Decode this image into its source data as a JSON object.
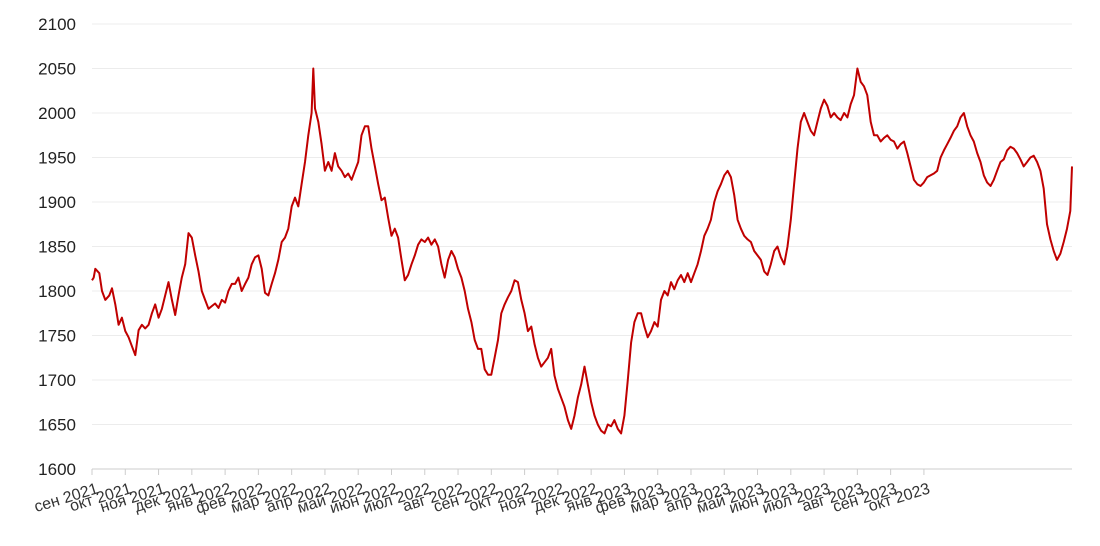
{
  "chart_data": {
    "type": "line",
    "title": "",
    "xlabel": "",
    "ylabel": "",
    "ylim": [
      1600,
      2100
    ],
    "yticks": [
      1600,
      1650,
      1700,
      1750,
      1800,
      1850,
      1900,
      1950,
      2000,
      2050,
      2100
    ],
    "x_tick_labels": [
      "сен 2021",
      "окт 2021",
      "ноя 2021",
      "дек 2021",
      "янв 2022",
      "фев 2022",
      "мар 2022",
      "апр 2022",
      "май 2022",
      "июн 2022",
      "июл 2022",
      "авг 2022",
      "сен 2022",
      "окт 2022",
      "ноя 2022",
      "дек 2022",
      "янв 2023",
      "фев 2023",
      "мар 2023",
      "апр 2023",
      "май 2023",
      "июн 2023",
      "июл 2023",
      "авг 2023",
      "сен 2023",
      "окт 2023"
    ],
    "grid": true,
    "legend": "none",
    "series": [
      {
        "color": "#c00000",
        "points": [
          [
            0.0,
            1812
          ],
          [
            0.05,
            1815
          ],
          [
            0.1,
            1825
          ],
          [
            0.22,
            1820
          ],
          [
            0.3,
            1800
          ],
          [
            0.4,
            1790
          ],
          [
            0.52,
            1795
          ],
          [
            0.6,
            1803
          ],
          [
            0.7,
            1785
          ],
          [
            0.8,
            1762
          ],
          [
            0.9,
            1770
          ],
          [
            1.0,
            1755
          ],
          [
            1.1,
            1748
          ],
          [
            1.2,
            1738
          ],
          [
            1.3,
            1728
          ],
          [
            1.4,
            1756
          ],
          [
            1.5,
            1762
          ],
          [
            1.6,
            1758
          ],
          [
            1.7,
            1762
          ],
          [
            1.8,
            1775
          ],
          [
            1.9,
            1785
          ],
          [
            2.0,
            1770
          ],
          [
            2.1,
            1780
          ],
          [
            2.2,
            1795
          ],
          [
            2.3,
            1810
          ],
          [
            2.4,
            1790
          ],
          [
            2.5,
            1773
          ],
          [
            2.6,
            1795
          ],
          [
            2.7,
            1815
          ],
          [
            2.8,
            1830
          ],
          [
            2.9,
            1865
          ],
          [
            3.0,
            1860
          ],
          [
            3.1,
            1840
          ],
          [
            3.2,
            1822
          ],
          [
            3.3,
            1800
          ],
          [
            3.4,
            1790
          ],
          [
            3.5,
            1780
          ],
          [
            3.6,
            1783
          ],
          [
            3.7,
            1786
          ],
          [
            3.8,
            1781
          ],
          [
            3.9,
            1790
          ],
          [
            4.0,
            1787
          ],
          [
            4.1,
            1800
          ],
          [
            4.2,
            1808
          ],
          [
            4.3,
            1808
          ],
          [
            4.4,
            1815
          ],
          [
            4.5,
            1800
          ],
          [
            4.6,
            1808
          ],
          [
            4.7,
            1815
          ],
          [
            4.8,
            1830
          ],
          [
            4.9,
            1838
          ],
          [
            5.0,
            1840
          ],
          [
            5.1,
            1825
          ],
          [
            5.2,
            1798
          ],
          [
            5.3,
            1795
          ],
          [
            5.4,
            1808
          ],
          [
            5.5,
            1820
          ],
          [
            5.6,
            1835
          ],
          [
            5.7,
            1855
          ],
          [
            5.8,
            1860
          ],
          [
            5.9,
            1870
          ],
          [
            6.0,
            1895
          ],
          [
            6.1,
            1905
          ],
          [
            6.2,
            1895
          ],
          [
            6.3,
            1920
          ],
          [
            6.4,
            1945
          ],
          [
            6.5,
            1975
          ],
          [
            6.6,
            2000
          ],
          [
            6.65,
            2050
          ],
          [
            6.7,
            2005
          ],
          [
            6.8,
            1990
          ],
          [
            6.9,
            1965
          ],
          [
            7.0,
            1935
          ],
          [
            7.1,
            1945
          ],
          [
            7.2,
            1935
          ],
          [
            7.3,
            1955
          ],
          [
            7.4,
            1940
          ],
          [
            7.5,
            1935
          ],
          [
            7.6,
            1928
          ],
          [
            7.7,
            1932
          ],
          [
            7.8,
            1925
          ],
          [
            7.9,
            1935
          ],
          [
            8.0,
            1945
          ],
          [
            8.1,
            1975
          ],
          [
            8.2,
            1985
          ],
          [
            8.3,
            1985
          ],
          [
            8.4,
            1960
          ],
          [
            8.5,
            1940
          ],
          [
            8.6,
            1920
          ],
          [
            8.7,
            1902
          ],
          [
            8.8,
            1905
          ],
          [
            8.9,
            1882
          ],
          [
            9.0,
            1862
          ],
          [
            9.1,
            1870
          ],
          [
            9.2,
            1860
          ],
          [
            9.3,
            1835
          ],
          [
            9.4,
            1812
          ],
          [
            9.5,
            1818
          ],
          [
            9.6,
            1830
          ],
          [
            9.7,
            1840
          ],
          [
            9.8,
            1852
          ],
          [
            9.9,
            1858
          ],
          [
            10.0,
            1855
          ],
          [
            10.1,
            1860
          ],
          [
            10.2,
            1852
          ],
          [
            10.3,
            1858
          ],
          [
            10.4,
            1850
          ],
          [
            10.5,
            1830
          ],
          [
            10.6,
            1815
          ],
          [
            10.7,
            1835
          ],
          [
            10.8,
            1845
          ],
          [
            10.9,
            1838
          ],
          [
            11.0,
            1825
          ],
          [
            11.1,
            1815
          ],
          [
            11.2,
            1800
          ],
          [
            11.3,
            1780
          ],
          [
            11.4,
            1765
          ],
          [
            11.5,
            1745
          ],
          [
            11.6,
            1735
          ],
          [
            11.7,
            1735
          ],
          [
            11.8,
            1712
          ],
          [
            11.9,
            1706
          ],
          [
            12.0,
            1706
          ],
          [
            12.1,
            1725
          ],
          [
            12.2,
            1745
          ],
          [
            12.3,
            1775
          ],
          [
            12.4,
            1785
          ],
          [
            12.5,
            1793
          ],
          [
            12.6,
            1800
          ],
          [
            12.7,
            1812
          ],
          [
            12.8,
            1810
          ],
          [
            12.9,
            1790
          ],
          [
            13.0,
            1775
          ],
          [
            13.1,
            1755
          ],
          [
            13.2,
            1760
          ],
          [
            13.3,
            1740
          ],
          [
            13.4,
            1725
          ],
          [
            13.5,
            1715
          ],
          [
            13.6,
            1720
          ],
          [
            13.7,
            1725
          ],
          [
            13.8,
            1735
          ],
          [
            13.9,
            1705
          ],
          [
            14.0,
            1690
          ],
          [
            14.1,
            1680
          ],
          [
            14.2,
            1670
          ],
          [
            14.3,
            1655
          ],
          [
            14.4,
            1645
          ],
          [
            14.5,
            1660
          ],
          [
            14.6,
            1680
          ],
          [
            14.7,
            1695
          ],
          [
            14.8,
            1715
          ],
          [
            14.9,
            1695
          ],
          [
            15.0,
            1675
          ],
          [
            15.1,
            1660
          ],
          [
            15.2,
            1650
          ],
          [
            15.3,
            1643
          ],
          [
            15.4,
            1640
          ],
          [
            15.5,
            1650
          ],
          [
            15.6,
            1648
          ],
          [
            15.7,
            1655
          ],
          [
            15.8,
            1645
          ],
          [
            15.9,
            1640
          ],
          [
            16.0,
            1660
          ],
          [
            16.1,
            1700
          ],
          [
            16.2,
            1742
          ],
          [
            16.3,
            1765
          ],
          [
            16.4,
            1775
          ],
          [
            16.5,
            1775
          ],
          [
            16.6,
            1760
          ],
          [
            16.7,
            1748
          ],
          [
            16.8,
            1755
          ],
          [
            16.9,
            1765
          ],
          [
            17.0,
            1760
          ],
          [
            17.1,
            1790
          ],
          [
            17.2,
            1800
          ],
          [
            17.3,
            1795
          ],
          [
            17.4,
            1810
          ],
          [
            17.5,
            1802
          ],
          [
            17.6,
            1812
          ],
          [
            17.7,
            1818
          ],
          [
            17.8,
            1810
          ],
          [
            17.9,
            1820
          ],
          [
            18.0,
            1810
          ],
          [
            18.1,
            1820
          ],
          [
            18.2,
            1830
          ],
          [
            18.3,
            1845
          ],
          [
            18.4,
            1862
          ],
          [
            18.5,
            1870
          ],
          [
            18.6,
            1880
          ],
          [
            18.7,
            1900
          ],
          [
            18.8,
            1912
          ],
          [
            18.9,
            1920
          ],
          [
            19.0,
            1930
          ],
          [
            19.1,
            1935
          ],
          [
            19.2,
            1928
          ],
          [
            19.3,
            1908
          ],
          [
            19.4,
            1880
          ],
          [
            19.5,
            1870
          ],
          [
            19.6,
            1862
          ],
          [
            19.7,
            1858
          ],
          [
            19.8,
            1855
          ],
          [
            19.9,
            1845
          ],
          [
            20.0,
            1840
          ],
          [
            20.1,
            1835
          ],
          [
            20.2,
            1822
          ],
          [
            20.3,
            1818
          ],
          [
            20.4,
            1830
          ],
          [
            20.5,
            1845
          ],
          [
            20.6,
            1850
          ],
          [
            20.7,
            1838
          ],
          [
            20.8,
            1830
          ],
          [
            20.9,
            1850
          ],
          [
            21.0,
            1880
          ],
          [
            21.1,
            1920
          ],
          [
            21.2,
            1960
          ],
          [
            21.3,
            1990
          ],
          [
            21.4,
            2000
          ],
          [
            21.5,
            1990
          ],
          [
            21.6,
            1980
          ],
          [
            21.7,
            1975
          ],
          [
            21.8,
            1990
          ],
          [
            21.9,
            2005
          ],
          [
            22.0,
            2015
          ],
          [
            22.1,
            2008
          ],
          [
            22.2,
            1995
          ],
          [
            22.3,
            2000
          ],
          [
            22.4,
            1995
          ],
          [
            22.5,
            1992
          ],
          [
            22.6,
            2000
          ],
          [
            22.7,
            1995
          ],
          [
            22.8,
            2010
          ],
          [
            22.9,
            2020
          ],
          [
            23.0,
            2050
          ],
          [
            23.1,
            2035
          ],
          [
            23.2,
            2030
          ],
          [
            23.3,
            2020
          ],
          [
            23.4,
            1990
          ],
          [
            23.5,
            1975
          ],
          [
            23.6,
            1975
          ],
          [
            23.7,
            1968
          ],
          [
            23.8,
            1972
          ],
          [
            23.9,
            1975
          ],
          [
            24.0,
            1970
          ],
          [
            24.1,
            1968
          ],
          [
            24.2,
            1960
          ],
          [
            24.3,
            1965
          ],
          [
            24.4,
            1968
          ],
          [
            24.5,
            1955
          ],
          [
            24.6,
            1940
          ],
          [
            24.7,
            1925
          ],
          [
            24.8,
            1920
          ],
          [
            24.9,
            1918
          ],
          [
            25.0,
            1922
          ],
          [
            25.1,
            1928
          ],
          [
            25.2,
            1930
          ],
          [
            25.3,
            1932
          ],
          [
            25.4,
            1935
          ],
          [
            25.5,
            1950
          ],
          [
            25.6,
            1958
          ],
          [
            25.7,
            1965
          ],
          [
            25.8,
            1972
          ],
          [
            25.9,
            1980
          ],
          [
            26.0,
            1985
          ],
          [
            26.1,
            1995
          ],
          [
            26.2,
            2000
          ],
          [
            26.3,
            1985
          ],
          [
            26.4,
            1975
          ],
          [
            26.5,
            1968
          ],
          [
            26.6,
            1955
          ],
          [
            26.7,
            1945
          ],
          [
            26.8,
            1930
          ],
          [
            26.9,
            1922
          ],
          [
            27.0,
            1918
          ],
          [
            27.1,
            1925
          ],
          [
            27.2,
            1935
          ],
          [
            27.3,
            1945
          ],
          [
            27.4,
            1948
          ],
          [
            27.5,
            1958
          ],
          [
            27.6,
            1962
          ],
          [
            27.7,
            1960
          ],
          [
            27.8,
            1955
          ],
          [
            27.9,
            1948
          ],
          [
            28.0,
            1940
          ],
          [
            28.1,
            1945
          ],
          [
            28.2,
            1950
          ],
          [
            28.3,
            1952
          ],
          [
            28.4,
            1945
          ],
          [
            28.5,
            1935
          ],
          [
            28.6,
            1915
          ],
          [
            28.7,
            1875
          ],
          [
            28.8,
            1858
          ],
          [
            28.9,
            1845
          ],
          [
            29.0,
            1835
          ],
          [
            29.1,
            1842
          ],
          [
            29.2,
            1855
          ],
          [
            29.3,
            1870
          ],
          [
            29.4,
            1890
          ],
          [
            29.45,
            1940
          ]
        ]
      }
    ],
    "x_domain": [
      0,
      29.45
    ]
  }
}
